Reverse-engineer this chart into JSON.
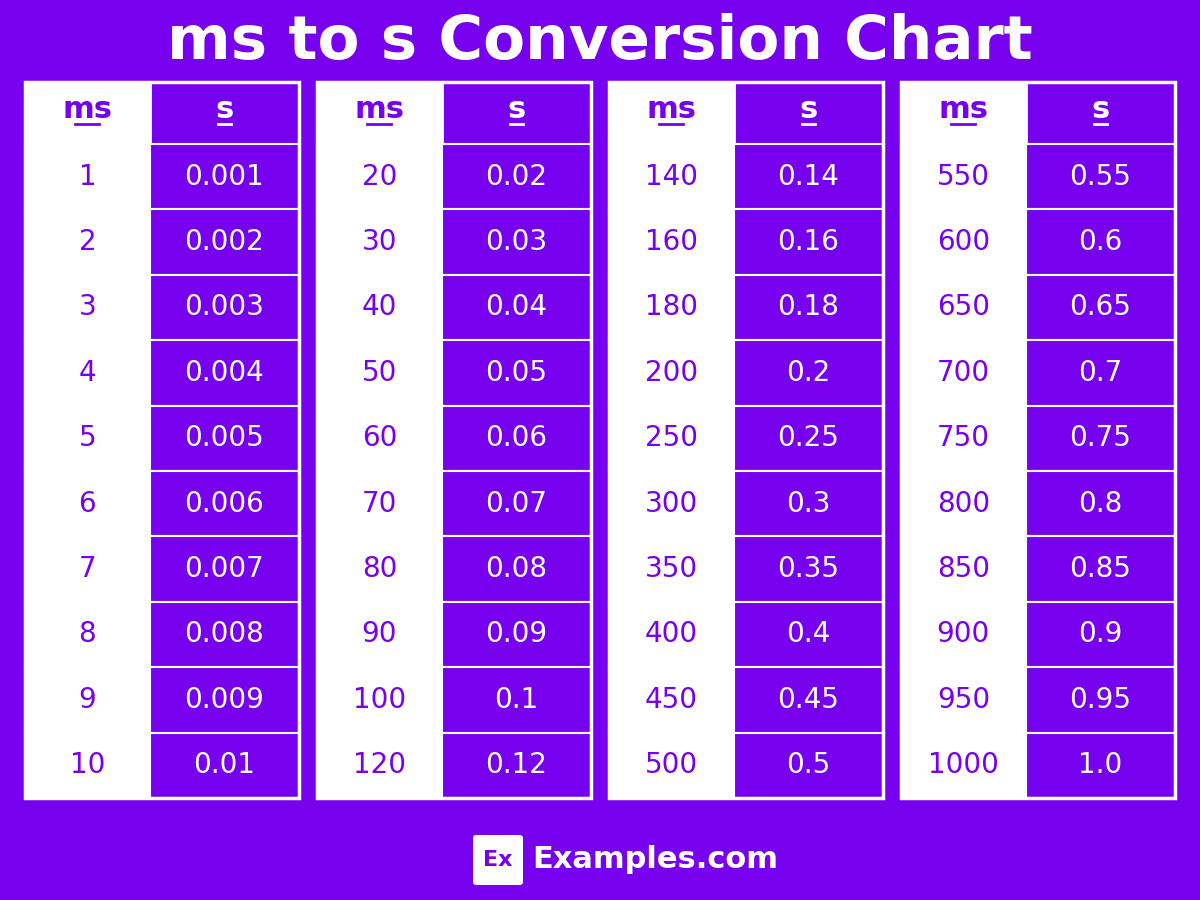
{
  "title": "ms to s Conversion Chart",
  "bg_color": "#7700EE",
  "white_color": "#FFFFFF",
  "tables": [
    {
      "ms": [
        "1",
        "2",
        "3",
        "4",
        "5",
        "6",
        "7",
        "8",
        "9",
        "10"
      ],
      "s": [
        "0.001",
        "0.002",
        "0.003",
        "0.004",
        "0.005",
        "0.006",
        "0.007",
        "0.008",
        "0.009",
        "0.01"
      ]
    },
    {
      "ms": [
        "20",
        "30",
        "40",
        "50",
        "60",
        "70",
        "80",
        "90",
        "100",
        "120"
      ],
      "s": [
        "0.02",
        "0.03",
        "0.04",
        "0.05",
        "0.06",
        "0.07",
        "0.08",
        "0.09",
        "0.1",
        "0.12"
      ]
    },
    {
      "ms": [
        "140",
        "160",
        "180",
        "200",
        "250",
        "300",
        "350",
        "400",
        "450",
        "500"
      ],
      "s": [
        "0.14",
        "0.16",
        "0.18",
        "0.2",
        "0.25",
        "0.3",
        "0.35",
        "0.4",
        "0.45",
        "0.5"
      ]
    },
    {
      "ms": [
        "550",
        "600",
        "650",
        "700",
        "750",
        "800",
        "850",
        "900",
        "950",
        "1000"
      ],
      "s": [
        "0.55",
        "0.6",
        "0.65",
        "0.7",
        "0.75",
        "0.8",
        "0.85",
        "0.9",
        "0.95",
        "1.0"
      ]
    }
  ],
  "footer_text": "Examples.com",
  "footer_box_text": "Ex",
  "title_fontsize": 44,
  "header_fontsize": 22,
  "cell_fontsize": 20,
  "footer_fontsize": 22
}
